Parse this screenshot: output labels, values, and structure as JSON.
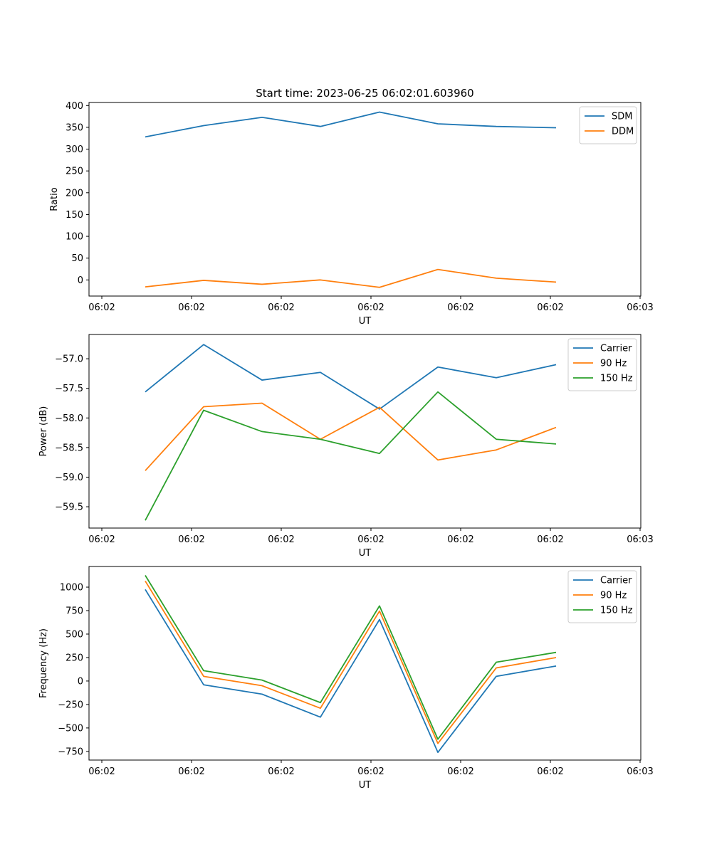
{
  "figure": {
    "title": "Start time: 2023-06-25 06:02:01.603960"
  },
  "chart_data": [
    {
      "type": "line",
      "xlabel": "UT",
      "ylabel": "Ratio",
      "x_tick_labels": [
        "06:02",
        "06:02",
        "06:02",
        "06:02",
        "06:02",
        "06:02",
        "06:03"
      ],
      "y_ticks": [
        0,
        50,
        100,
        150,
        200,
        250,
        300,
        350,
        400
      ],
      "ylim": [
        -37,
        407
      ],
      "x_positions": [
        1,
        2,
        3,
        4,
        5,
        6,
        7,
        8
      ],
      "legend_position": "top-right",
      "series": [
        {
          "name": "SDM",
          "color": "#1f77b4",
          "values": [
            328,
            354,
            373,
            352,
            385,
            358,
            352,
            349
          ]
        },
        {
          "name": "DDM",
          "color": "#ff7f0e",
          "values": [
            -16,
            -1,
            -10,
            0,
            -17,
            24,
            4,
            -5
          ]
        }
      ]
    },
    {
      "type": "line",
      "xlabel": "UT",
      "ylabel": "Power (dB)",
      "x_tick_labels": [
        "06:02",
        "06:02",
        "06:02",
        "06:02",
        "06:02",
        "06:02",
        "06:03"
      ],
      "y_ticks": [
        -59.5,
        -59.0,
        -58.5,
        -58.0,
        -57.5,
        -57.0
      ],
      "y_tick_labels": [
        "−59.5",
        "−59.0",
        "−58.5",
        "−58.0",
        "−57.5",
        "−57.0"
      ],
      "ylim": [
        -59.86,
        -56.59
      ],
      "x_positions": [
        1,
        2,
        3,
        4,
        5,
        6,
        7,
        8
      ],
      "legend_position": "top-right",
      "series": [
        {
          "name": "Carrier",
          "color": "#1f77b4",
          "values": [
            -57.56,
            -56.76,
            -57.36,
            -57.23,
            -57.85,
            -57.14,
            -57.32,
            -57.1
          ]
        },
        {
          "name": "90 Hz",
          "color": "#ff7f0e",
          "values": [
            -58.89,
            -57.81,
            -57.75,
            -58.36,
            -57.82,
            -58.71,
            -58.54,
            -58.16
          ]
        },
        {
          "name": "150 Hz",
          "color": "#2ca02c",
          "values": [
            -59.73,
            -57.87,
            -58.23,
            -58.36,
            -58.6,
            -57.56,
            -58.36,
            -58.44
          ]
        }
      ]
    },
    {
      "type": "line",
      "xlabel": "UT",
      "ylabel": "Frequency (Hz)",
      "x_tick_labels": [
        "06:02",
        "06:02",
        "06:02",
        "06:02",
        "06:02",
        "06:02",
        "06:03"
      ],
      "y_ticks": [
        -750,
        -500,
        -250,
        0,
        250,
        500,
        750,
        1000
      ],
      "y_tick_labels": [
        "−750",
        "−500",
        "−250",
        "0",
        "250",
        "500",
        "750",
        "1000"
      ],
      "ylim": [
        -842,
        1220
      ],
      "x_positions": [
        1,
        2,
        3,
        4,
        5,
        6,
        7,
        8
      ],
      "legend_position": "top-right",
      "series": [
        {
          "name": "Carrier",
          "color": "#1f77b4",
          "values": [
            975,
            -40,
            -140,
            -385,
            655,
            -760,
            50,
            160
          ]
        },
        {
          "name": "90 Hz",
          "color": "#ff7f0e",
          "values": [
            1065,
            50,
            -50,
            -290,
            745,
            -665,
            140,
            250
          ]
        },
        {
          "name": "150 Hz",
          "color": "#2ca02c",
          "values": [
            1125,
            110,
            10,
            -230,
            800,
            -620,
            200,
            305
          ]
        }
      ]
    }
  ]
}
